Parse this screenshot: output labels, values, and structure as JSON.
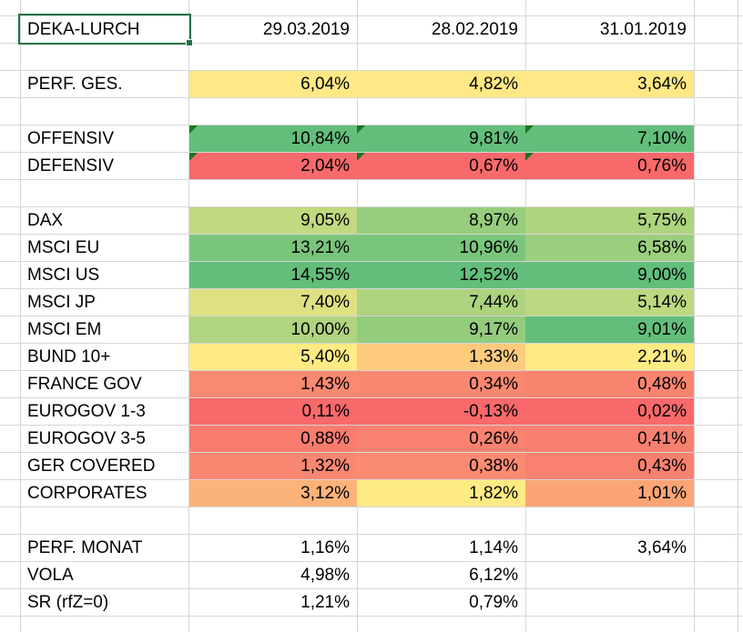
{
  "app": {
    "type": "spreadsheet"
  },
  "colors": {
    "gridline": "#d6d6d6",
    "selection_border": "#217346",
    "comment_triangle": "#1a771e",
    "scale_max_green": "#63BE7B",
    "scale_mid_yellow": "#FFEB84",
    "scale_min_red": "#F8696B",
    "summary_yellow": "#FFE885"
  },
  "sheet": {
    "title_cell": "DEKA-LURCH",
    "date_columns": [
      "29.03.2019",
      "28.02.2019",
      "31.01.2019"
    ],
    "rows": [
      {
        "r": 1,
        "key": "header",
        "label": "DEKA-LURCH",
        "selected": true,
        "cells": [
          {
            "t": "29.03.2019"
          },
          {
            "t": "28.02.2019"
          },
          {
            "t": "31.01.2019"
          }
        ]
      },
      {
        "r": 3,
        "key": "perf-ges",
        "label": "PERF. GES.",
        "cells": [
          {
            "t": "6,04%",
            "bg": "#FFE885"
          },
          {
            "t": "4,82%",
            "bg": "#FFE885"
          },
          {
            "t": "3,64%",
            "bg": "#FFE885"
          }
        ]
      },
      {
        "r": 5,
        "key": "offensiv",
        "label": "OFFENSIV",
        "marker": true,
        "cells": [
          {
            "t": "10,84%",
            "bg": "#63BE7B"
          },
          {
            "t": "9,81%",
            "bg": "#63BE7B"
          },
          {
            "t": "7,10%",
            "bg": "#63BE7B"
          }
        ]
      },
      {
        "r": 6,
        "key": "defensiv",
        "label": "DEFENSIV",
        "marker": true,
        "cells": [
          {
            "t": "2,04%",
            "bg": "#F8696B"
          },
          {
            "t": "0,67%",
            "bg": "#F8696B"
          },
          {
            "t": "0,76%",
            "bg": "#F8696B"
          }
        ]
      },
      {
        "r": 8,
        "key": "dax",
        "label": "DAX",
        "cells": [
          {
            "t": "9,05%",
            "bg": "#C1D980"
          },
          {
            "t": "8,97%",
            "bg": "#97CD7E"
          },
          {
            "t": "5,75%",
            "bg": "#AED47F"
          }
        ]
      },
      {
        "r": 9,
        "key": "msci-eu",
        "label": "MSCI EU",
        "cells": [
          {
            "t": "13,21%",
            "bg": "#7AC57C"
          },
          {
            "t": "10,96%",
            "bg": "#7AC57C"
          },
          {
            "t": "6,58%",
            "bg": "#9BCE7E"
          }
        ]
      },
      {
        "r": 10,
        "key": "msci-us",
        "label": "MSCI US",
        "cells": [
          {
            "t": "14,55%",
            "bg": "#63BE7B"
          },
          {
            "t": "12,52%",
            "bg": "#63BE7B"
          },
          {
            "t": "9,00%",
            "bg": "#63BE7B"
          }
        ]
      },
      {
        "r": 11,
        "key": "msci-jp",
        "label": "MSCI JP",
        "cells": [
          {
            "t": "7,40%",
            "bg": "#DDE182"
          },
          {
            "t": "7,44%",
            "bg": "#ADD37F"
          },
          {
            "t": "5,14%",
            "bg": "#BCD880"
          }
        ]
      },
      {
        "r": 12,
        "key": "msci-em",
        "label": "MSCI EM",
        "cells": [
          {
            "t": "10,00%",
            "bg": "#B1D480"
          },
          {
            "t": "9,17%",
            "bg": "#94CC7E"
          },
          {
            "t": "9,01%",
            "bg": "#63BE7B"
          }
        ]
      },
      {
        "r": 13,
        "key": "bund-10",
        "label": "BUND 10+",
        "cells": [
          {
            "t": "5,40%",
            "bg": "#FFEB84"
          },
          {
            "t": "1,33%",
            "bg": "#FDCA7E"
          },
          {
            "t": "2,21%",
            "bg": "#FFEB84"
          }
        ]
      },
      {
        "r": 14,
        "key": "france-gov",
        "label": "FRANCE GOV",
        "cells": [
          {
            "t": "1,43%",
            "bg": "#FA8971"
          },
          {
            "t": "0,34%",
            "bg": "#FA8871"
          },
          {
            "t": "0,48%",
            "bg": "#F98470"
          }
        ]
      },
      {
        "r": 15,
        "key": "eurogov-1-3",
        "label": "EUROGOV 1-3",
        "cells": [
          {
            "t": "0,11%",
            "bg": "#F8696B"
          },
          {
            "t": "-0,13%",
            "bg": "#F8696B"
          },
          {
            "t": "0,02%",
            "bg": "#F8696B"
          }
        ]
      },
      {
        "r": 16,
        "key": "eurogov-3-5",
        "label": "EUROGOV 3-5",
        "cells": [
          {
            "t": "0,88%",
            "bg": "#F97C6F"
          },
          {
            "t": "0,26%",
            "bg": "#F98370"
          },
          {
            "t": "0,41%",
            "bg": "#F9806F"
          }
        ]
      },
      {
        "r": 17,
        "key": "ger-covered",
        "label": "GER COVERED",
        "cells": [
          {
            "t": "1,32%",
            "bg": "#FA8771"
          },
          {
            "t": "0,38%",
            "bg": "#FA8B72"
          },
          {
            "t": "0,43%",
            "bg": "#F98170"
          }
        ]
      },
      {
        "r": 18,
        "key": "corporates",
        "label": "CORPORATES",
        "cells": [
          {
            "t": "3,12%",
            "bg": "#FCB379"
          },
          {
            "t": "1,82%",
            "bg": "#FFEB84"
          },
          {
            "t": "1,01%",
            "bg": "#FBA476"
          }
        ]
      },
      {
        "r": 20,
        "key": "perf-monat",
        "label": "PERF. MONAT",
        "cells": [
          {
            "t": "1,16%"
          },
          {
            "t": "1,14%"
          },
          {
            "t": "3,64%"
          }
        ]
      },
      {
        "r": 21,
        "key": "vola",
        "label": "VOLA",
        "cells": [
          {
            "t": "4,98%"
          },
          {
            "t": "6,12%"
          },
          {
            "t": ""
          }
        ]
      },
      {
        "r": 22,
        "key": "sr-rfz-0",
        "label": "SR (rfZ=0)",
        "cells": [
          {
            "t": "1,21%"
          },
          {
            "t": "0,79%"
          },
          {
            "t": ""
          }
        ]
      }
    ]
  }
}
